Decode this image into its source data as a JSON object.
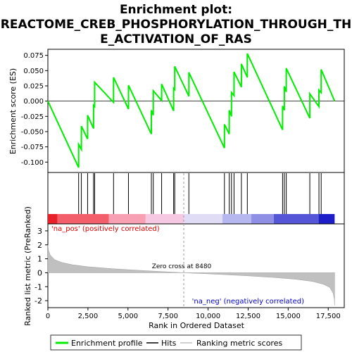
{
  "chart_data": {
    "type": "line",
    "title_line1": "Enrichment plot:",
    "title_line2": "REACTOME_CREB_PHOSPHORYLATION_THROUGH_TH",
    "title_line3": "E_ACTIVATION_OF_RAS",
    "es_panel": {
      "ylabel": "Enrichment score (ES)",
      "ylim": [
        -0.117,
        0.085
      ],
      "yticks": [
        {
          "v": 0.075,
          "label": "0.075"
        },
        {
          "v": 0.05,
          "label": "0.050"
        },
        {
          "v": 0.025,
          "label": "0.025"
        },
        {
          "v": 0.0,
          "label": "0.000"
        },
        {
          "v": -0.025,
          "label": "-0.025"
        },
        {
          "v": -0.05,
          "label": "-0.050"
        },
        {
          "v": -0.075,
          "label": "-0.075"
        },
        {
          "v": -0.1,
          "label": "-0.100"
        }
      ],
      "series_color": "#00ee00",
      "points": [
        [
          0,
          0.0
        ],
        [
          1920,
          -0.109
        ],
        [
          1920,
          -0.071
        ],
        [
          2090,
          -0.079
        ],
        [
          2090,
          -0.041
        ],
        [
          2480,
          -0.062
        ],
        [
          2480,
          -0.023
        ],
        [
          2850,
          -0.045
        ],
        [
          2850,
          -0.007
        ],
        [
          2920,
          -0.009
        ],
        [
          2920,
          0.031
        ],
        [
          4100,
          -0.002
        ],
        [
          4100,
          0.039
        ],
        [
          5030,
          -0.013
        ],
        [
          5030,
          0.026
        ],
        [
          6460,
          -0.054
        ],
        [
          6460,
          -0.015
        ],
        [
          6580,
          -0.023
        ],
        [
          6580,
          0.017
        ],
        [
          7100,
          0.001
        ],
        [
          7100,
          0.028
        ],
        [
          7850,
          -0.016
        ],
        [
          7850,
          0.021
        ],
        [
          7920,
          0.019
        ],
        [
          7920,
          0.057
        ],
        [
          8800,
          0.008
        ],
        [
          8800,
          0.047
        ],
        [
          11020,
          -0.077
        ],
        [
          11020,
          -0.038
        ],
        [
          11320,
          -0.054
        ],
        [
          11320,
          -0.015
        ],
        [
          11460,
          -0.025
        ],
        [
          11460,
          0.014
        ],
        [
          11620,
          0.009
        ],
        [
          11620,
          0.048
        ],
        [
          12080,
          0.023
        ],
        [
          12080,
          0.061
        ],
        [
          12450,
          0.039
        ],
        [
          12450,
          0.078
        ],
        [
          14650,
          -0.047
        ],
        [
          14650,
          -0.008
        ],
        [
          14760,
          -0.015
        ],
        [
          14760,
          0.024
        ],
        [
          14880,
          0.015
        ],
        [
          14880,
          0.054
        ],
        [
          16350,
          -0.028
        ],
        [
          16350,
          0.012
        ],
        [
          16920,
          -0.009
        ],
        [
          16920,
          0.018
        ],
        [
          17060,
          0.014
        ],
        [
          17060,
          0.052
        ],
        [
          17900,
          0.0
        ]
      ]
    },
    "hits_panel": {
      "hit_positions": [
        1920,
        2090,
        2480,
        2850,
        2920,
        4100,
        5030,
        6460,
        6580,
        7100,
        7850,
        7920,
        8800,
        11020,
        11320,
        11460,
        11620,
        12080,
        12450,
        14650,
        14760,
        14880,
        16350,
        16920,
        17060
      ],
      "colorbar": [
        {
          "from": 0,
          "to": 600,
          "color": "#e8202a"
        },
        {
          "from": 600,
          "to": 3800,
          "color": "#f25e6a"
        },
        {
          "from": 3800,
          "to": 6100,
          "color": "#f7a0b3"
        },
        {
          "from": 6100,
          "to": 8480,
          "color": "#f7c8e2"
        },
        {
          "from": 8480,
          "to": 10900,
          "color": "#e0dcf5"
        },
        {
          "from": 10900,
          "to": 12700,
          "color": "#b7b7ef"
        },
        {
          "from": 12700,
          "to": 14100,
          "color": "#8f8fe6"
        },
        {
          "from": 14100,
          "to": 16900,
          "color": "#5555d8"
        },
        {
          "from": 16900,
          "to": 17900,
          "color": "#1e1ec8"
        }
      ]
    },
    "metric_panel": {
      "ylabel": "Ranked list metric (PreRanked)",
      "ylim": [
        -2.5,
        3.5
      ],
      "yticks": [
        {
          "v": 3,
          "label": "3"
        },
        {
          "v": 2,
          "label": "2"
        },
        {
          "v": 1,
          "label": "1"
        },
        {
          "v": 0,
          "label": "0"
        },
        {
          "v": -1,
          "label": "-1"
        },
        {
          "v": -2,
          "label": "-2"
        }
      ],
      "curve": [
        [
          0,
          2.0
        ],
        [
          40,
          1.6
        ],
        [
          150,
          1.25
        ],
        [
          400,
          0.95
        ],
        [
          900,
          0.72
        ],
        [
          1500,
          0.58
        ],
        [
          2500,
          0.43
        ],
        [
          4000,
          0.29
        ],
        [
          6000,
          0.15
        ],
        [
          8480,
          0.0
        ],
        [
          10500,
          -0.1
        ],
        [
          12500,
          -0.22
        ],
        [
          14000,
          -0.33
        ],
        [
          15500,
          -0.47
        ],
        [
          16500,
          -0.62
        ],
        [
          17200,
          -0.82
        ],
        [
          17600,
          -1.05
        ],
        [
          17800,
          -1.45
        ],
        [
          17880,
          -1.9
        ],
        [
          17900,
          -2.35
        ]
      ],
      "pos_label": "'na_pos' (positively correlated)",
      "neg_label": "'na_neg' (negatively correlated)",
      "zero_cross_label": "Zero cross at 8480",
      "zero_cross": 8480
    },
    "xlabel": "Rank in Ordered Dataset",
    "xlim": [
      0,
      18500
    ],
    "xticks": [
      {
        "v": 0,
        "label": "0"
      },
      {
        "v": 2500,
        "label": "2,500"
      },
      {
        "v": 5000,
        "label": "5,000"
      },
      {
        "v": 7500,
        "label": "7,500"
      },
      {
        "v": 10000,
        "label": "10,000"
      },
      {
        "v": 12500,
        "label": "12,500"
      },
      {
        "v": 15000,
        "label": "15,000"
      },
      {
        "v": 17500,
        "label": "17,500"
      }
    ],
    "legend": [
      {
        "label": "Enrichment profile",
        "color": "#00ee00"
      },
      {
        "label": "Hits",
        "color": "#000000"
      },
      {
        "label": "Ranking metric scores",
        "color": "#c0c0c0"
      }
    ]
  }
}
